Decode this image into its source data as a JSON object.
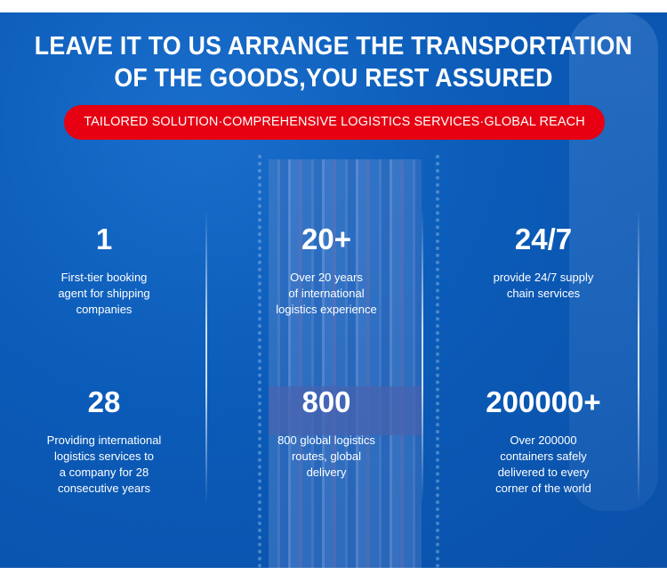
{
  "headline": {
    "line1": "LEAVE IT TO US ARRANGE THE TRANSPORTATION",
    "line2": "OF THE GOODS,YOU REST ASSURED"
  },
  "tagline": "TAILORED SOLUTION·COMPREHENSIVE LOGISTICS SERVICES·GLOBAL REACH",
  "colors": {
    "background": "#0b5bb8",
    "accent": "#e60012"
  },
  "stats": [
    {
      "value": "1",
      "desc": [
        "First-tier booking",
        "agent for shipping",
        "companies"
      ]
    },
    {
      "value": "20+",
      "desc": [
        "Over 20 years",
        "of international",
        "logistics experience"
      ]
    },
    {
      "value": "24/7",
      "desc": [
        "provide 24/7 supply",
        "chain services"
      ]
    },
    {
      "value": "28",
      "desc": [
        "Providing international",
        "logistics services to",
        "a company for 28",
        "consecutive years"
      ]
    },
    {
      "value": "800",
      "desc": [
        "800 global logistics",
        "routes, global",
        "delivery"
      ]
    },
    {
      "value": "200000+",
      "desc": [
        "Over 200000",
        "containers safely",
        "delivered to every",
        "corner of the world"
      ]
    }
  ]
}
